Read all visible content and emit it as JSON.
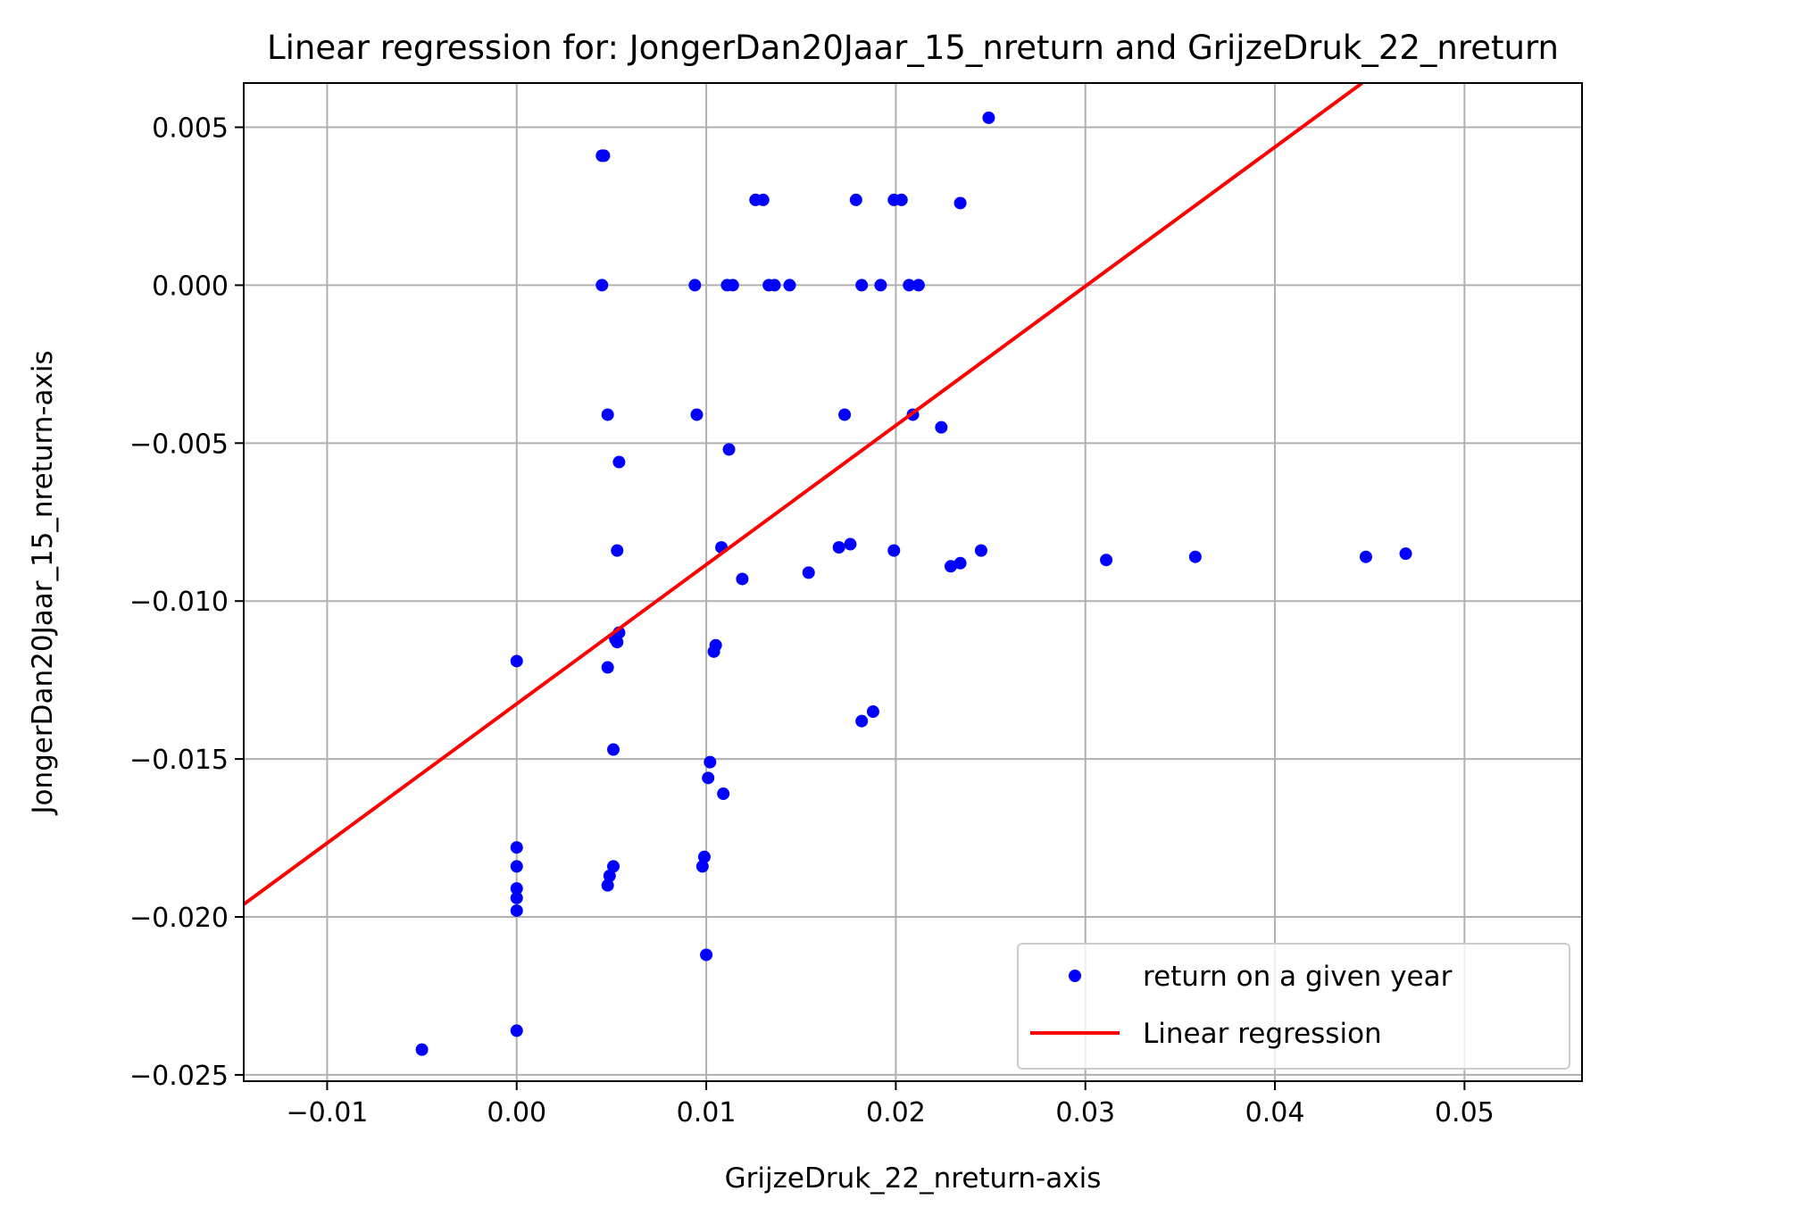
{
  "chart_data": {
    "type": "scatter",
    "title": "Linear regression for: JongerDan20Jaar_15_nreturn and GrijzeDruk_22_nreturn",
    "xlabel": "GrijzeDruk_22_nreturn-axis",
    "ylabel": "JongerDan20Jaar_15_nreturn-axis",
    "xlim": [
      -0.0144,
      0.0562
    ],
    "ylim": [
      -0.0252,
      0.0064
    ],
    "x_ticks": [
      -0.01,
      0.0,
      0.01,
      0.02,
      0.03,
      0.04,
      0.05
    ],
    "x_tick_labels": [
      "−0.01",
      "0.00",
      "0.01",
      "0.02",
      "0.03",
      "0.04",
      "0.05"
    ],
    "y_ticks": [
      0.005,
      0.0,
      -0.005,
      -0.01,
      -0.015,
      -0.02,
      -0.025
    ],
    "y_tick_labels": [
      "0.005",
      "0.000",
      "−0.005",
      "−0.010",
      "−0.015",
      "−0.020",
      "−0.025"
    ],
    "grid": true,
    "legend_position": "bottom-right",
    "series": [
      {
        "name": "return on a given year",
        "kind": "scatter",
        "color": "#0000ff",
        "points": [
          [
            0.0249,
            0.0053
          ],
          [
            0.0045,
            0.0041
          ],
          [
            0.0046,
            0.0041
          ],
          [
            0.0126,
            0.0027
          ],
          [
            0.013,
            0.0027
          ],
          [
            0.0179,
            0.0027
          ],
          [
            0.0199,
            0.0027
          ],
          [
            0.0203,
            0.0027
          ],
          [
            0.0234,
            0.0026
          ],
          [
            0.0045,
            0.0
          ],
          [
            0.0094,
            0.0
          ],
          [
            0.0111,
            0.0
          ],
          [
            0.0114,
            0.0
          ],
          [
            0.0133,
            0.0
          ],
          [
            0.0136,
            0.0
          ],
          [
            0.0144,
            0.0
          ],
          [
            0.0182,
            0.0
          ],
          [
            0.0192,
            0.0
          ],
          [
            0.0207,
            0.0
          ],
          [
            0.0212,
            0.0
          ],
          [
            0.0048,
            -0.0041
          ],
          [
            0.0095,
            -0.0041
          ],
          [
            0.0173,
            -0.0041
          ],
          [
            0.0209,
            -0.0041
          ],
          [
            0.0224,
            -0.0045
          ],
          [
            0.0112,
            -0.0052
          ],
          [
            0.0054,
            -0.0056
          ],
          [
            0.0053,
            -0.0084
          ],
          [
            0.0108,
            -0.0083
          ],
          [
            0.017,
            -0.0083
          ],
          [
            0.0176,
            -0.0082
          ],
          [
            0.0199,
            -0.0084
          ],
          [
            0.0245,
            -0.0084
          ],
          [
            0.0229,
            -0.0089
          ],
          [
            0.0234,
            -0.0088
          ],
          [
            0.0119,
            -0.0093
          ],
          [
            0.0154,
            -0.0091
          ],
          [
            0.0311,
            -0.0087
          ],
          [
            0.0358,
            -0.0086
          ],
          [
            0.0448,
            -0.0086
          ],
          [
            0.0469,
            -0.0085
          ],
          [
            0.0054,
            -0.011
          ],
          [
            0.0053,
            -0.0113
          ],
          [
            0.0052,
            -0.0112
          ],
          [
            0.0048,
            -0.0121
          ],
          [
            0.0,
            -0.0119
          ],
          [
            0.0105,
            -0.0114
          ],
          [
            0.0104,
            -0.0116
          ],
          [
            0.0188,
            -0.0135
          ],
          [
            0.0182,
            -0.0138
          ],
          [
            0.0051,
            -0.0147
          ],
          [
            0.0102,
            -0.0151
          ],
          [
            0.0101,
            -0.0156
          ],
          [
            0.0109,
            -0.0161
          ],
          [
            0.0,
            -0.0178
          ],
          [
            0.0,
            -0.0184
          ],
          [
            0.0,
            -0.0191
          ],
          [
            0.0,
            -0.0194
          ],
          [
            0.0,
            -0.0198
          ],
          [
            0.0051,
            -0.0184
          ],
          [
            0.0049,
            -0.0187
          ],
          [
            0.0048,
            -0.019
          ],
          [
            0.0099,
            -0.0181
          ],
          [
            0.0098,
            -0.0184
          ],
          [
            0.01,
            -0.0212
          ],
          [
            0.0,
            -0.0236
          ],
          [
            -0.005,
            -0.0242
          ]
        ]
      },
      {
        "name": "Linear regression",
        "kind": "line",
        "color": "#ff0000",
        "x": [
          -0.0144,
          0.0446
        ],
        "y": [
          -0.0196,
          0.0064
        ]
      }
    ]
  }
}
